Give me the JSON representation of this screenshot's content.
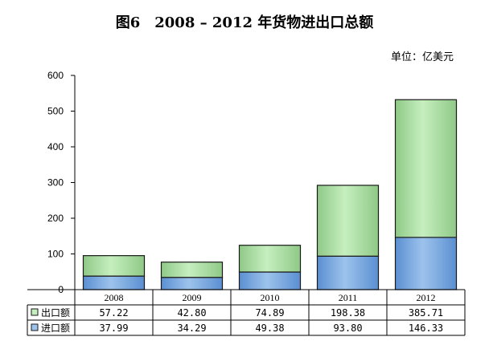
{
  "title": "图6　2008 – 2012 年货物进出口总额",
  "unit": "单位：亿美元",
  "colors": {
    "export_fill": "#c6efbf",
    "export_fill_dark": "#8fc987",
    "import_fill": "#9dc3ec",
    "import_fill_dark": "#5b8fd2",
    "bar_stroke": "#1a1a1a",
    "axis": "#000000",
    "grid": "#d9d9d9"
  },
  "chart_data": {
    "type": "bar",
    "stacked": true,
    "categories": [
      "2008",
      "2009",
      "2010",
      "2011",
      "2012"
    ],
    "series": [
      {
        "name": "进口额",
        "values": [
          37.99,
          34.29,
          49.38,
          93.8,
          146.33
        ],
        "labels": [
          "37.99",
          "34.29",
          "49.38",
          "93.80",
          "146.33"
        ]
      },
      {
        "name": "出口额",
        "values": [
          57.22,
          42.8,
          74.89,
          198.38,
          385.71
        ],
        "labels": [
          "57.22",
          "42.80",
          "74.89",
          "198.38",
          "385.71"
        ]
      }
    ],
    "yticks": [
      0,
      100,
      200,
      300,
      400,
      500,
      600
    ],
    "ylim": [
      0,
      600
    ],
    "table_rows_order": [
      "出口额",
      "进口额"
    ]
  }
}
